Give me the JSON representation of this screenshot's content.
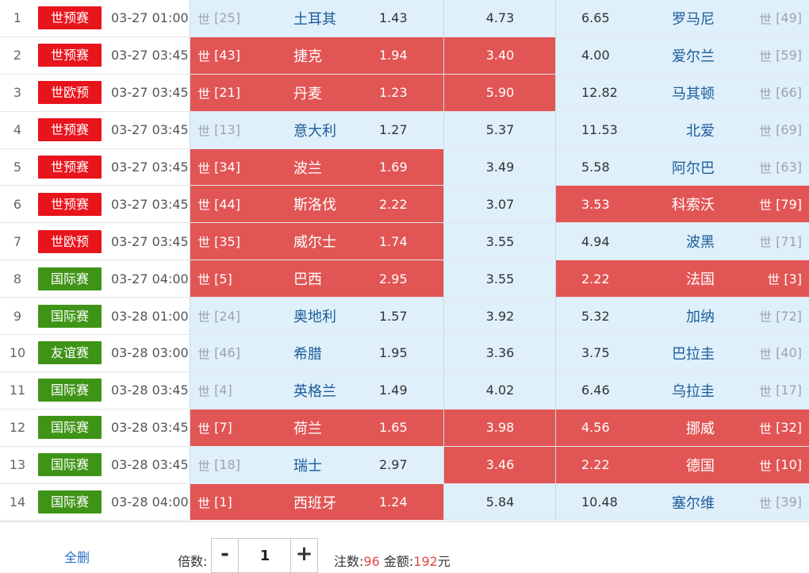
{
  "rank_prefix": "世",
  "matches": [
    {
      "idx": "1",
      "league": "世预赛",
      "league_color": "red",
      "time": "03-27 01:00",
      "home_rank": "[25]",
      "home_team": "土耳其",
      "home_odds": "1.43",
      "draw_odds": "4.73",
      "away_odds": "6.65",
      "away_team": "罗马尼",
      "away_rank": "[49]",
      "sel_home": false,
      "sel_draw": false,
      "sel_away": false
    },
    {
      "idx": "2",
      "league": "世预赛",
      "league_color": "red",
      "time": "03-27 03:45",
      "home_rank": "[43]",
      "home_team": "捷克",
      "home_odds": "1.94",
      "draw_odds": "3.40",
      "away_odds": "4.00",
      "away_team": "爱尔兰",
      "away_rank": "[59]",
      "sel_home": true,
      "sel_draw": true,
      "sel_away": false
    },
    {
      "idx": "3",
      "league": "世欧预",
      "league_color": "red",
      "time": "03-27 03:45",
      "home_rank": "[21]",
      "home_team": "丹麦",
      "home_odds": "1.23",
      "draw_odds": "5.90",
      "away_odds": "12.82",
      "away_team": "马其顿",
      "away_rank": "[66]",
      "sel_home": true,
      "sel_draw": true,
      "sel_away": false
    },
    {
      "idx": "4",
      "league": "世预赛",
      "league_color": "red",
      "time": "03-27 03:45",
      "home_rank": "[13]",
      "home_team": "意大利",
      "home_odds": "1.27",
      "draw_odds": "5.37",
      "away_odds": "11.53",
      "away_team": "北爱",
      "away_rank": "[69]",
      "sel_home": false,
      "sel_draw": false,
      "sel_away": false
    },
    {
      "idx": "5",
      "league": "世预赛",
      "league_color": "red",
      "time": "03-27 03:45",
      "home_rank": "[34]",
      "home_team": "波兰",
      "home_odds": "1.69",
      "draw_odds": "3.49",
      "away_odds": "5.58",
      "away_team": "阿尔巴",
      "away_rank": "[63]",
      "sel_home": true,
      "sel_draw": false,
      "sel_away": false
    },
    {
      "idx": "6",
      "league": "世预赛",
      "league_color": "red",
      "time": "03-27 03:45",
      "home_rank": "[44]",
      "home_team": "斯洛伐",
      "home_odds": "2.22",
      "draw_odds": "3.07",
      "away_odds": "3.53",
      "away_team": "科索沃",
      "away_rank": "[79]",
      "sel_home": true,
      "sel_draw": false,
      "sel_away": true
    },
    {
      "idx": "7",
      "league": "世欧预",
      "league_color": "red",
      "time": "03-27 03:45",
      "home_rank": "[35]",
      "home_team": "威尔士",
      "home_odds": "1.74",
      "draw_odds": "3.55",
      "away_odds": "4.94",
      "away_team": "波黑",
      "away_rank": "[71]",
      "sel_home": true,
      "sel_draw": false,
      "sel_away": false
    },
    {
      "idx": "8",
      "league": "国际赛",
      "league_color": "green",
      "time": "03-27 04:00",
      "home_rank": "[5]",
      "home_team": "巴西",
      "home_odds": "2.95",
      "draw_odds": "3.55",
      "away_odds": "2.22",
      "away_team": "法国",
      "away_rank": "[3]",
      "sel_home": true,
      "sel_draw": false,
      "sel_away": true
    },
    {
      "idx": "9",
      "league": "国际赛",
      "league_color": "green",
      "time": "03-28 01:00",
      "home_rank": "[24]",
      "home_team": "奥地利",
      "home_odds": "1.57",
      "draw_odds": "3.92",
      "away_odds": "5.32",
      "away_team": "加纳",
      "away_rank": "[72]",
      "sel_home": false,
      "sel_draw": false,
      "sel_away": false
    },
    {
      "idx": "10",
      "league": "友谊赛",
      "league_color": "green",
      "time": "03-28 03:00",
      "home_rank": "[46]",
      "home_team": "希腊",
      "home_odds": "1.95",
      "draw_odds": "3.36",
      "away_odds": "3.75",
      "away_team": "巴拉圭",
      "away_rank": "[40]",
      "sel_home": false,
      "sel_draw": false,
      "sel_away": false
    },
    {
      "idx": "11",
      "league": "国际赛",
      "league_color": "green",
      "time": "03-28 03:45",
      "home_rank": "[4]",
      "home_team": "英格兰",
      "home_odds": "1.49",
      "draw_odds": "4.02",
      "away_odds": "6.46",
      "away_team": "乌拉圭",
      "away_rank": "[17]",
      "sel_home": false,
      "sel_draw": false,
      "sel_away": false
    },
    {
      "idx": "12",
      "league": "国际赛",
      "league_color": "green",
      "time": "03-28 03:45",
      "home_rank": "[7]",
      "home_team": "荷兰",
      "home_odds": "1.65",
      "draw_odds": "3.98",
      "away_odds": "4.56",
      "away_team": "挪威",
      "away_rank": "[32]",
      "sel_home": true,
      "sel_draw": true,
      "sel_away": true
    },
    {
      "idx": "13",
      "league": "国际赛",
      "league_color": "green",
      "time": "03-28 03:45",
      "home_rank": "[18]",
      "home_team": "瑞士",
      "home_odds": "2.97",
      "draw_odds": "3.46",
      "away_odds": "2.22",
      "away_team": "德国",
      "away_rank": "[10]",
      "sel_home": false,
      "sel_draw": true,
      "sel_away": true
    },
    {
      "idx": "14",
      "league": "国际赛",
      "league_color": "green",
      "time": "03-28 04:00",
      "home_rank": "[1]",
      "home_team": "西班牙",
      "home_odds": "1.24",
      "draw_odds": "5.84",
      "away_odds": "10.48",
      "away_team": "塞尔维",
      "away_rank": "[39]",
      "sel_home": true,
      "sel_draw": false,
      "sel_away": false
    }
  ],
  "footer": {
    "clear_label": "全删",
    "multiplier_label": "倍数:",
    "minus_label": "-",
    "plus_label": "+",
    "multiplier_value": "1",
    "bets_label": "注数:",
    "bets_value": "96",
    "amount_label": "金额:",
    "amount_value": "192",
    "currency": "元"
  },
  "colors": {
    "league_red": "#e8141c",
    "league_green": "#3f9417",
    "selected_cell": "#e25555",
    "normal_cell": "#dff0fb",
    "team_text": "#1c5c9a",
    "highlight_number": "#e04848",
    "link": "#2a6fc4"
  }
}
